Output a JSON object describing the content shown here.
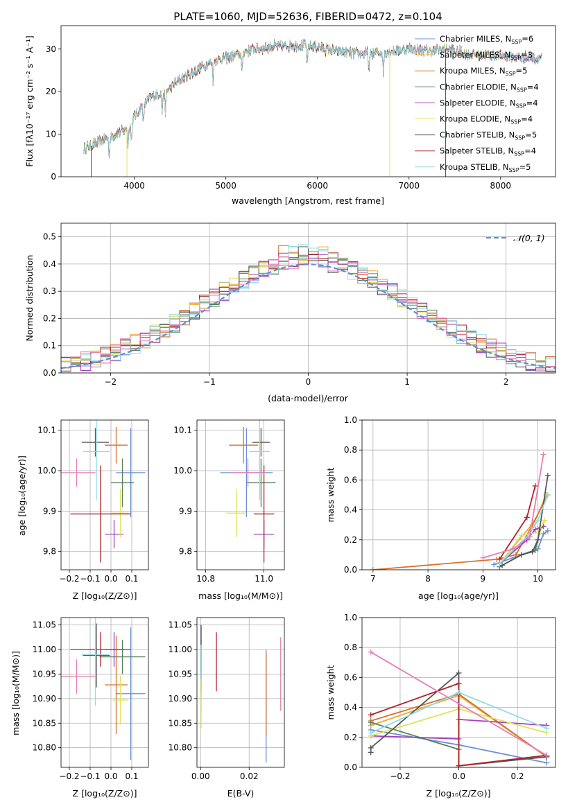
{
  "figure_title": "PLATE=1060, MJD=52636, FIBERID=0472, z=0.104",
  "colors": {
    "Chabrier MILES": "#6b8fd6",
    "Salpeter MILES": "#f0a830",
    "Kroupa MILES": "#d9712b",
    "Chabrier ELODIE": "#55805a",
    "Salpeter ELODIE": "#a43fbf",
    "Kroupa ELODIE": "#dce45a",
    "Chabrier STELIB": "#555555",
    "Salpeter STELIB": "#b0232a",
    "Kroupa STELIB": "#8fdde4",
    "pink": "#e67fb5",
    "normal_curve": "#5b8fd6"
  },
  "chart_data": [
    {
      "id": "spectrum",
      "type": "line",
      "title": "PLATE=1060, MJD=52636, FIBERID=0472, z=0.104",
      "xlabel": "wavelength [Angstrom, rest frame]",
      "ylabel": "Flux [f_λ 10^-17 erg cm^-2 s^-1 A^-1]",
      "xlim": [
        3200,
        8600
      ],
      "ylim": [
        0,
        35.5
      ],
      "xticks": [
        4000,
        5000,
        6000,
        7000,
        8000
      ],
      "yticks": [
        0,
        10,
        20,
        30
      ],
      "legend_position": "top-right",
      "legend": [
        {
          "name": "Chabrier MILES",
          "label": "Chabrier MILES, N_SSP=6",
          "color": "#6b8fd6"
        },
        {
          "name": "Salpeter MILES",
          "label": "Salpeter MILES, N_SSP=3",
          "color": "#f0a830"
        },
        {
          "name": "Kroupa MILES",
          "label": "Kroupa MILES, N_SSP=5",
          "color": "#d9712b"
        },
        {
          "name": "Chabrier ELODIE",
          "label": "Chabrier ELODIE, N_SSP=4",
          "color": "#55805a"
        },
        {
          "name": "Salpeter ELODIE",
          "label": "Salpeter ELODIE, N_SSP=4",
          "color": "#a43fbf"
        },
        {
          "name": "Kroupa ELODIE",
          "label": "Kroupa ELODIE, N_SSP=4",
          "color": "#dce45a"
        },
        {
          "name": "Chabrier STELIB",
          "label": "Chabrier STELIB, N_SSP=5",
          "color": "#555555"
        },
        {
          "name": "Salpeter STELIB",
          "label": "Salpeter STELIB, N_SSP=4",
          "color": "#b0232a"
        },
        {
          "name": "Kroupa STELIB",
          "label": "Kroupa STELIB, N_SSP=5",
          "color": "#8fdde4"
        }
      ],
      "continuum_anchor_points": [
        [
          3450,
          6.5
        ],
        [
          3600,
          8
        ],
        [
          3800,
          10
        ],
        [
          3900,
          11
        ],
        [
          4000,
          14
        ],
        [
          4100,
          17
        ],
        [
          4200,
          19
        ],
        [
          4350,
          20
        ],
        [
          4450,
          22
        ],
        [
          4600,
          24
        ],
        [
          4750,
          26
        ],
        [
          4900,
          27.5
        ],
        [
          5100,
          28.5
        ],
        [
          5300,
          30
        ],
        [
          5500,
          30.5
        ],
        [
          5800,
          31
        ],
        [
          6000,
          30.5
        ],
        [
          6200,
          29.5
        ],
        [
          6400,
          29
        ],
        [
          6600,
          29
        ],
        [
          6800,
          29.5
        ],
        [
          7000,
          30
        ],
        [
          7200,
          29.5
        ],
        [
          7400,
          30
        ],
        [
          7600,
          29
        ],
        [
          7800,
          28.5
        ],
        [
          8000,
          28.5
        ],
        [
          8200,
          28
        ],
        [
          8450,
          28
        ]
      ],
      "dropouts": [
        {
          "series": "Salpeter STELIB",
          "x": 3530
        },
        {
          "series": "Kroupa ELODIE",
          "x": 3920
        },
        {
          "series": "Kroupa ELODIE",
          "x": 6790
        },
        {
          "series": "Salpeter STELIB",
          "x": 7400
        }
      ]
    },
    {
      "id": "residuals",
      "type": "line",
      "xlabel": "(data-model)/error",
      "ylabel": "Normed distribution",
      "xlim": [
        -2.5,
        2.5
      ],
      "ylim": [
        0,
        0.55
      ],
      "xticks": [
        -2,
        -1,
        0,
        1,
        2
      ],
      "yticks": [
        0.0,
        0.1,
        0.2,
        0.3,
        0.4,
        0.5
      ],
      "grid": true,
      "legend_position": "top-right",
      "legend_label": "N(0,1)",
      "bin_width": 0.1,
      "normal": {
        "mean": 0,
        "sigma": 1
      }
    },
    {
      "id": "age_vs_Z",
      "type": "scatter",
      "xlabel": "Z [log10(Z/Z☉)]",
      "ylabel": "age  [log10(age/yr)]",
      "xlim": [
        -0.24,
        0.18
      ],
      "ylim": [
        9.755,
        10.125
      ],
      "xticks": [
        -0.2,
        -0.1,
        0.0,
        0.1
      ],
      "yticks": [
        9.8,
        9.9,
        10.0,
        10.1
      ],
      "grid": true,
      "points": [
        {
          "series": "Chabrier MILES",
          "x": 0.095,
          "xerr": 0.07,
          "y": 9.995,
          "yerr": 0.11
        },
        {
          "series": "Kroupa MILES",
          "x": 0.025,
          "xerr": 0.055,
          "y": 10.063,
          "yerr": 0.045
        },
        {
          "series": "Chabrier ELODIE",
          "x": 0.055,
          "xerr": 0.055,
          "y": 9.97,
          "yerr": 0.06
        },
        {
          "series": "Salpeter ELODIE",
          "x": 0.015,
          "xerr": 0.045,
          "y": 9.843,
          "yerr": 0.035
        },
        {
          "series": "Kroupa ELODIE",
          "x": 0.045,
          "xerr": 0.04,
          "y": 9.895,
          "yerr": 0.06
        },
        {
          "series": "Chabrier STELIB",
          "x": -0.075,
          "xerr": 0.065,
          "y": 10.07,
          "yerr": 0.035
        },
        {
          "series": "Salpeter STELIB",
          "x": -0.05,
          "xerr": 0.145,
          "y": 9.893,
          "yerr": 0.12
        },
        {
          "series": "Kroupa STELIB",
          "x": -0.07,
          "xerr": 0.065,
          "y": 10.047,
          "yerr": 0.12
        },
        {
          "series": "pink",
          "x": -0.165,
          "xerr": 0.09,
          "y": 9.995,
          "yerr": 0.035
        }
      ]
    },
    {
      "id": "age_vs_mass",
      "type": "scatter",
      "xlabel": "mass [log10(M/M☉)]",
      "ylabel": "",
      "xlim": [
        10.77,
        11.07
      ],
      "ylim": [
        9.755,
        10.125
      ],
      "xticks": [
        10.8,
        11.0
      ],
      "yticks": [
        9.8,
        9.9,
        10.0,
        10.1
      ],
      "grid": true,
      "points": [
        {
          "series": "Chabrier MILES",
          "x": 10.94,
          "xerr": 0.09,
          "y": 9.995,
          "yerr": 0.11
        },
        {
          "series": "Kroupa MILES",
          "x": 10.93,
          "xerr": 0.05,
          "y": 10.063,
          "yerr": 0.045
        },
        {
          "series": "Chabrier ELODIE",
          "x": 10.99,
          "xerr": 0.05,
          "y": 9.97,
          "yerr": 0.06
        },
        {
          "series": "Salpeter ELODIE",
          "x": 11.0,
          "xerr": 0.035,
          "y": 9.843,
          "yerr": 0.035
        },
        {
          "series": "Kroupa ELODIE",
          "x": 10.905,
          "xerr": 0.035,
          "y": 9.895,
          "yerr": 0.06
        },
        {
          "series": "Chabrier STELIB",
          "x": 10.99,
          "xerr": 0.03,
          "y": 10.07,
          "yerr": 0.035
        },
        {
          "series": "Salpeter STELIB",
          "x": 11.0,
          "xerr": 0.035,
          "y": 9.893,
          "yerr": 0.12
        },
        {
          "series": "Kroupa STELIB",
          "x": 10.985,
          "xerr": 0.035,
          "y": 10.047,
          "yerr": 0.12
        },
        {
          "series": "pink",
          "x": 10.945,
          "xerr": 0.06,
          "y": 9.995,
          "yerr": 0.035
        }
      ]
    },
    {
      "id": "weight_vs_age",
      "type": "line",
      "xlabel": "age  [log10(age/yr)]",
      "ylabel": "mass weight",
      "xlim": [
        6.8,
        10.32
      ],
      "ylim": [
        0,
        1.0
      ],
      "xticks": [
        7,
        8,
        9,
        10
      ],
      "yticks": [
        0.0,
        0.2,
        0.4,
        0.6,
        0.8,
        1.0
      ],
      "grid": true,
      "series": [
        {
          "name": "Chabrier MILES",
          "x": [
            9.2,
            10.0,
            10.1,
            10.18
          ],
          "y": [
            0.035,
            0.14,
            0.24,
            0.26
          ]
        },
        {
          "name": "Salpeter MILES",
          "x": [
            9.3,
            9.95,
            10.15
          ],
          "y": [
            0.04,
            0.33,
            0.5
          ]
        },
        {
          "name": "Kroupa MILES",
          "x": [
            7.0,
            9.25,
            9.6,
            9.9,
            10.18
          ],
          "y": [
            0.0,
            0.07,
            0.1,
            0.3,
            0.5
          ]
        },
        {
          "name": "Chabrier ELODIE",
          "x": [
            9.3,
            9.7,
            9.95,
            10.05
          ],
          "y": [
            0.02,
            0.1,
            0.13,
            0.28
          ]
        },
        {
          "name": "Salpeter ELODIE",
          "x": [
            9.3,
            9.8,
            9.95,
            10.1
          ],
          "y": [
            0.04,
            0.2,
            0.27,
            0.29
          ]
        },
        {
          "name": "Kroupa ELODIE",
          "x": [
            9.3,
            9.7,
            10.0,
            10.12
          ],
          "y": [
            0.04,
            0.23,
            0.25,
            0.33
          ]
        },
        {
          "name": "Chabrier STELIB",
          "x": [
            9.35,
            9.7,
            9.9,
            10.0,
            10.18
          ],
          "y": [
            0.03,
            0.1,
            0.12,
            0.2,
            0.63
          ]
        },
        {
          "name": "Salpeter STELIB",
          "x": [
            9.3,
            9.8,
            9.95
          ],
          "y": [
            0.07,
            0.35,
            0.56
          ]
        },
        {
          "name": "Kroupa STELIB",
          "x": [
            9.3,
            9.85,
            10.0,
            10.18
          ],
          "y": [
            0.04,
            0.24,
            0.33,
            0.5
          ]
        },
        {
          "name": "pink",
          "x": [
            9.0,
            9.55,
            9.85,
            10.1
          ],
          "y": [
            0.08,
            0.14,
            0.22,
            0.77
          ]
        }
      ]
    },
    {
      "id": "mass_vs_Z",
      "type": "scatter",
      "xlabel": "Z [log10(Z/Z☉)]",
      "ylabel": "mass [log10(M/M☉)]",
      "xlim": [
        -0.24,
        0.18
      ],
      "ylim": [
        10.76,
        11.065
      ],
      "xticks": [
        -0.2,
        -0.1,
        0.0,
        0.1
      ],
      "yticks": [
        10.8,
        10.85,
        10.9,
        10.95,
        11.0,
        11.05
      ],
      "grid": true,
      "points": [
        {
          "series": "Chabrier MILES",
          "x": 0.095,
          "xerr": 0.07,
          "y": 10.91,
          "yerr": 0.135
        },
        {
          "series": "Kroupa MILES",
          "x": 0.025,
          "xerr": 0.055,
          "y": 10.928,
          "yerr": 0.1
        },
        {
          "series": "Chabrier ELODIE",
          "x": 0.055,
          "xerr": 0.11,
          "y": 10.985,
          "yerr": 0.035
        },
        {
          "series": "Salpeter ELODIE",
          "x": 0.015,
          "xerr": 0.045,
          "y": 11.0,
          "yerr": 0.035
        },
        {
          "series": "Kroupa ELODIE",
          "x": 0.045,
          "xerr": 0.035,
          "y": 10.897,
          "yerr": 0.05
        },
        {
          "series": "Chabrier STELIB",
          "x": -0.07,
          "xerr": 0.065,
          "y": 10.988,
          "yerr": 0.065
        },
        {
          "series": "Salpeter STELIB",
          "x": -0.05,
          "xerr": 0.145,
          "y": 11.0,
          "yerr": 0.035
        },
        {
          "series": "Kroupa STELIB",
          "x": -0.075,
          "xerr": 0.065,
          "y": 10.99,
          "yerr": 0.105
        },
        {
          "series": "pink",
          "x": -0.165,
          "xerr": 0.09,
          "y": 10.945,
          "yerr": 0.035
        }
      ]
    },
    {
      "id": "mass_vs_ebv",
      "type": "scatter",
      "xlabel": "E(B-V)",
      "ylabel": "",
      "xlim": [
        -0.0015,
        0.0345
      ],
      "ylim": [
        10.76,
        11.065
      ],
      "xticks": [
        0.0,
        0.02
      ],
      "yticks": [
        10.8,
        10.85,
        10.9,
        10.95,
        11.0,
        11.05
      ],
      "grid": true,
      "points": [
        {
          "series": "Chabrier MILES",
          "x": 0.027,
          "y": 10.885,
          "yerr": 0.115
        },
        {
          "series": "Kroupa MILES",
          "x": 0.027,
          "y": 10.91,
          "yerr": 0.085
        },
        {
          "series": "pink",
          "x": 0.033,
          "y": 10.95,
          "yerr": 0.075
        },
        {
          "series": "Salpeter STELIB",
          "x": 0.0065,
          "y": 10.975,
          "yerr": 0.06
        },
        {
          "series": "Salpeter ELODIE",
          "x": 0.0002,
          "y": 11.0,
          "yerr": 0.05
        },
        {
          "series": "Chabrier ELODIE",
          "x": 0.0002,
          "y": 10.97,
          "yerr": 0.05
        },
        {
          "series": "Chabrier STELIB",
          "x": 0.0002,
          "y": 10.98,
          "yerr": 0.07
        },
        {
          "series": "Kroupa STELIB",
          "x": 0.0002,
          "y": 10.94,
          "yerr": 0.07
        },
        {
          "series": "Kroupa ELODIE",
          "x": 0.0002,
          "y": 10.89,
          "yerr": 0.05
        }
      ]
    },
    {
      "id": "weight_vs_Z",
      "type": "line",
      "xlabel": "Z [log10(Z/Z☉)]",
      "ylabel": "mass weight",
      "xlim": [
        -0.33,
        0.33
      ],
      "ylim": [
        0,
        1.0
      ],
      "xticks": [
        -0.2,
        0.0,
        0.2
      ],
      "yticks": [
        0.0,
        0.2,
        0.4,
        0.6,
        0.8,
        1.0
      ],
      "grid": true,
      "series": [
        {
          "name": "Chabrier MILES",
          "x": [
            -0.3,
            0.0,
            0.3
          ],
          "y": [
            0.25,
            0.15,
            0.03
          ]
        },
        {
          "name": "Salpeter MILES",
          "x": [
            -0.3,
            0.0,
            0.3
          ],
          "y": [
            0.28,
            0.48,
            0.07
          ]
        },
        {
          "name": "Kroupa MILES",
          "x": [
            -0.3,
            0.0,
            0.3
          ],
          "y": [
            0.31,
            0.49,
            0.07
          ]
        },
        {
          "name": "Chabrier ELODIE",
          "x": [
            -0.3,
            0.0
          ],
          "y": [
            0.3,
            0.12
          ]
        },
        {
          "name": "Salpeter ELODIE",
          "x": [
            -0.3,
            0.0,
            0.0,
            0.3
          ],
          "y": [
            0.21,
            0.19,
            0.32,
            0.28
          ]
        },
        {
          "name": "Kroupa ELODIE",
          "x": [
            -0.3,
            0.0,
            0.3
          ],
          "y": [
            0.21,
            0.39,
            0.23
          ]
        },
        {
          "name": "Chabrier STELIB",
          "x": [
            -0.3,
            -0.3,
            0.0,
            0.0,
            0.3
          ],
          "y": [
            0.1,
            0.13,
            0.63,
            0.01,
            0.07
          ]
        },
        {
          "name": "Salpeter STELIB",
          "x": [
            -0.3,
            0.0,
            0.0,
            0.3
          ],
          "y": [
            0.35,
            0.56,
            0.01,
            0.08
          ]
        },
        {
          "name": "Kroupa STELIB",
          "x": [
            -0.3,
            0.0,
            0.3
          ],
          "y": [
            0.23,
            0.5,
            0.26
          ]
        },
        {
          "name": "pink",
          "x": [
            -0.3,
            0.3
          ],
          "y": [
            0.77,
            0.08
          ]
        }
      ]
    }
  ]
}
